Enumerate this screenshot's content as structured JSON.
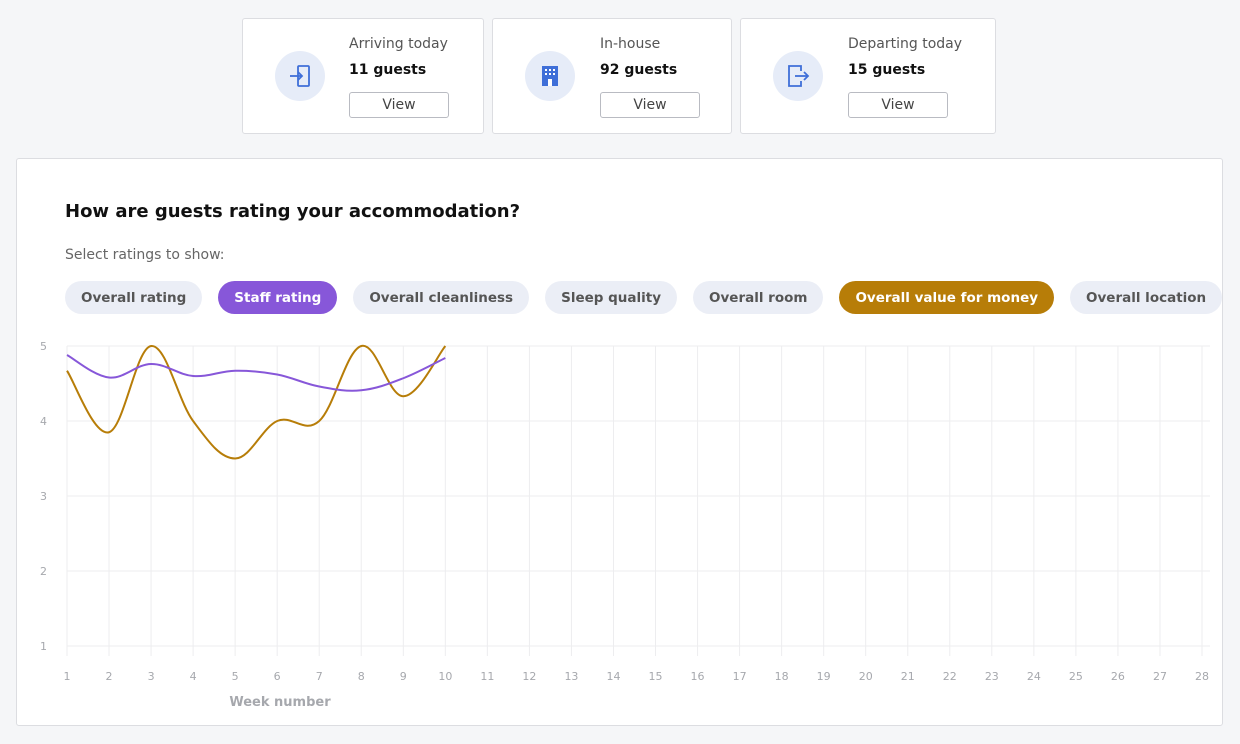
{
  "stats": [
    {
      "label": "Arriving today",
      "value": "11 guests",
      "button": "View",
      "icon": "arrive-door-icon"
    },
    {
      "label": "In-house",
      "value": "92 guests",
      "button": "View",
      "icon": "building-icon"
    },
    {
      "label": "Departing today",
      "value": "15 guests",
      "button": "View",
      "icon": "depart-door-icon"
    }
  ],
  "panel": {
    "title": "How are guests rating your accommodation?",
    "subtitle": "Select ratings to show:"
  },
  "chips": [
    {
      "label": "Overall rating",
      "selected": false
    },
    {
      "label": "Staff rating",
      "selected": true,
      "color": "#8757d9"
    },
    {
      "label": "Overall cleanliness",
      "selected": false
    },
    {
      "label": "Sleep quality",
      "selected": false
    },
    {
      "label": "Overall room",
      "selected": false
    },
    {
      "label": "Overall value for money",
      "selected": true,
      "color": "#b77d08"
    },
    {
      "label": "Overall location",
      "selected": false
    }
  ],
  "colors": {
    "accent_icon": "#3f6fd8",
    "icon_bg": "#e6ecf8",
    "staff": "#8757d9",
    "value": "#b77d08"
  },
  "chart_data": {
    "type": "line",
    "title": "",
    "xlabel": "Week number",
    "ylabel": "",
    "x": [
      1,
      2,
      3,
      4,
      5,
      6,
      7,
      8,
      9,
      10,
      11,
      12,
      13,
      14,
      15,
      16,
      17,
      18,
      19,
      20,
      21,
      22,
      23,
      24,
      25,
      26,
      27,
      28
    ],
    "xlim": [
      1,
      28
    ],
    "ylim": [
      1,
      5
    ],
    "yticks": [
      1,
      2,
      3,
      4,
      5
    ],
    "grid": true,
    "series": [
      {
        "name": "Staff rating",
        "color": "#8757d9",
        "x": [
          1,
          2,
          3,
          4,
          5,
          6,
          7,
          8,
          9,
          10
        ],
        "values": [
          4.88,
          4.58,
          4.76,
          4.6,
          4.67,
          4.62,
          4.46,
          4.41,
          4.57,
          4.84
        ]
      },
      {
        "name": "Overall value for money",
        "color": "#b77d08",
        "x": [
          1,
          2,
          3,
          4,
          5,
          6,
          7,
          8,
          9,
          10
        ],
        "values": [
          4.67,
          3.85,
          5.0,
          4.0,
          3.5,
          4.0,
          4.0,
          5.0,
          4.33,
          5.0
        ]
      }
    ]
  }
}
